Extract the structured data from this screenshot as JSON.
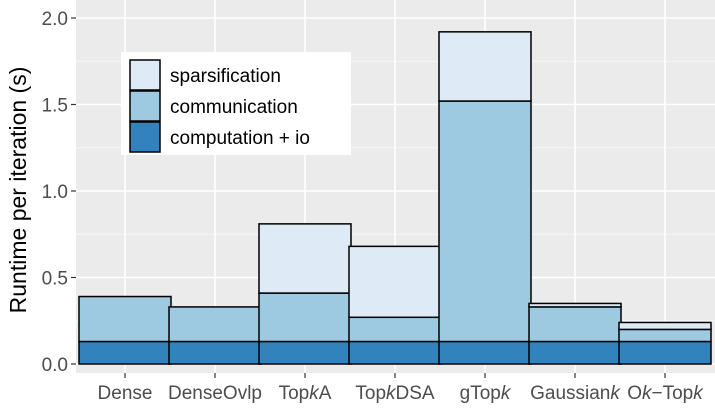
{
  "chart_data": {
    "type": "bar",
    "stacked": true,
    "title": "",
    "xlabel": "",
    "ylabel": "Runtime per iteration (s)",
    "ylim": [
      0,
      2.0
    ],
    "yticks": [
      "0.0",
      "0.5",
      "1.0",
      "1.5",
      "2.0"
    ],
    "ytick_values": [
      0,
      0.5,
      1.0,
      1.5,
      2.0
    ],
    "grid": true,
    "legend_position": "top-left",
    "categories": [
      {
        "label": "Dense",
        "italic_part": ""
      },
      {
        "label": "DenseOvlp",
        "italic_part": ""
      },
      {
        "label": "TopkA",
        "pre": "Top",
        "italic_part": "k",
        "post": "A"
      },
      {
        "label": "TopkDSA",
        "pre": "Top",
        "italic_part": "k",
        "post": "DSA"
      },
      {
        "label": "gTopk",
        "pre": "gTop",
        "italic_part": "k",
        "post": ""
      },
      {
        "label": "Gaussiank",
        "pre": "Gaussian",
        "italic_part": "k",
        "post": ""
      },
      {
        "label": "Ok−Topk",
        "pre": "O",
        "italic_part": "k",
        "post": "−Top",
        "italic_part2": "k"
      }
    ],
    "series": [
      {
        "name": "computation + io",
        "color": "#3182bd",
        "values": [
          0.13,
          0.13,
          0.13,
          0.13,
          0.13,
          0.13,
          0.13
        ]
      },
      {
        "name": "communication",
        "color": "#9ecae1",
        "values": [
          0.26,
          0.2,
          0.28,
          0.14,
          1.39,
          0.2,
          0.07
        ]
      },
      {
        "name": "sparsification",
        "color": "#deebf7",
        "values": [
          0.0,
          0.0,
          0.4,
          0.41,
          0.4,
          0.02,
          0.04
        ]
      }
    ],
    "legend_order": [
      "sparsification",
      "communication",
      "computation + io"
    ]
  },
  "colors": {
    "panel_background": "#ebebeb",
    "grid_major": "#ffffff",
    "bar_outline": "#000000"
  }
}
